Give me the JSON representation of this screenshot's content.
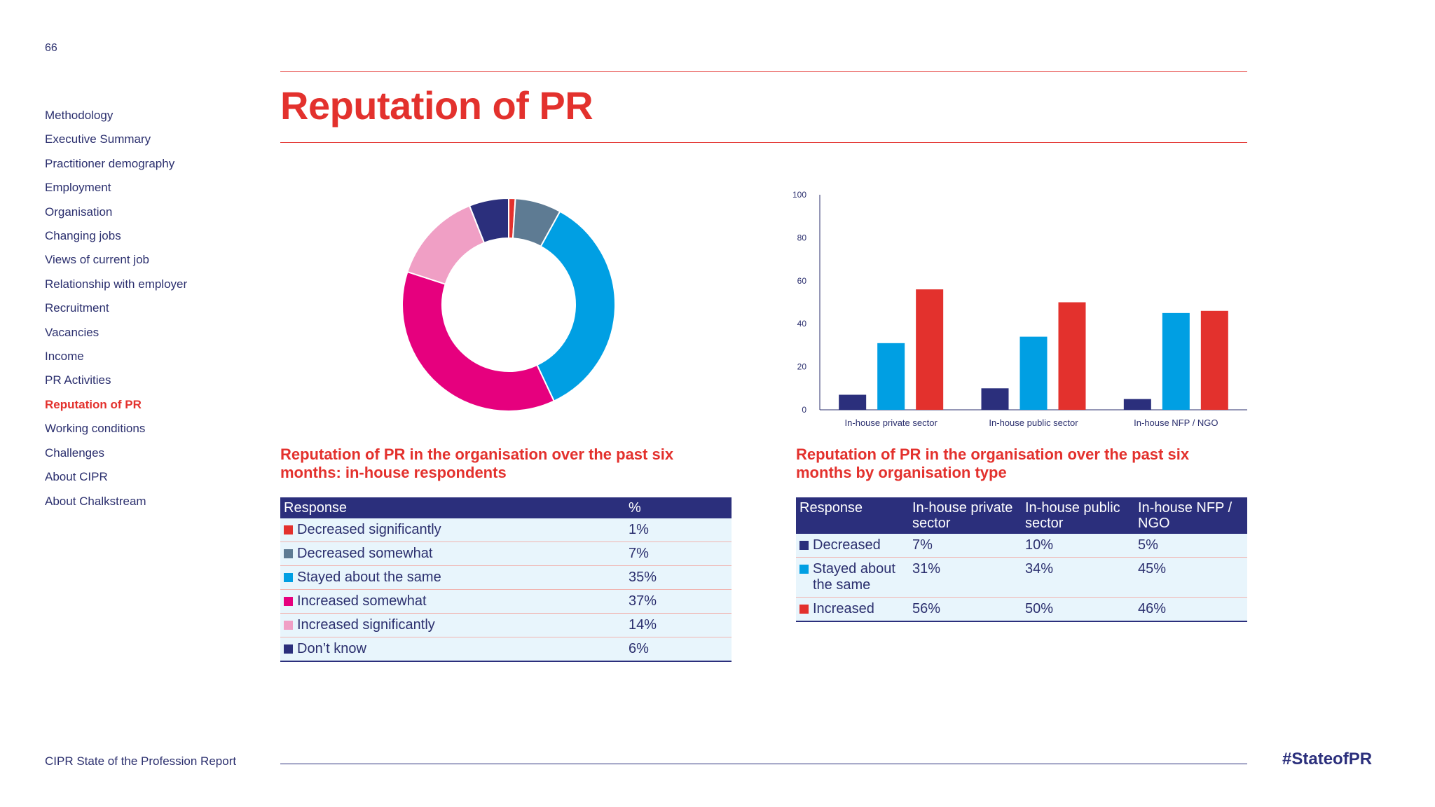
{
  "page_number": "66",
  "title": "Reputation of PR",
  "sidebar": {
    "items": [
      {
        "label": "Methodology",
        "active": false
      },
      {
        "label": "Executive Summary",
        "active": false
      },
      {
        "label": "Practitioner demography",
        "active": false
      },
      {
        "label": "Employment",
        "active": false
      },
      {
        "label": "Organisation",
        "active": false
      },
      {
        "label": "Changing jobs",
        "active": false
      },
      {
        "label": "Views of current job",
        "active": false
      },
      {
        "label": "Relationship with employer",
        "active": false
      },
      {
        "label": "Recruitment",
        "active": false
      },
      {
        "label": "Vacancies",
        "active": false
      },
      {
        "label": "Income",
        "active": false
      },
      {
        "label": "PR Activities",
        "active": false
      },
      {
        "label": "Reputation of PR",
        "active": true
      },
      {
        "label": "Working conditions",
        "active": false
      },
      {
        "label": "Challenges",
        "active": false
      },
      {
        "label": "About CIPR",
        "active": false
      },
      {
        "label": "About Chalkstream",
        "active": false
      }
    ]
  },
  "footer": {
    "left": "CIPR State of the Profession Report",
    "right": "#StateofPR"
  },
  "chart_data": [
    {
      "type": "pie",
      "donut": true,
      "title": "Reputation of PR in the organisation over the past six months: in-house respondents",
      "categories": [
        "Decreased significantly",
        "Decreased somewhat",
        "Stayed about the same",
        "Increased somewhat",
        "Increased significantly",
        "Don't know"
      ],
      "values": [
        1,
        7,
        35,
        37,
        14,
        6
      ],
      "colors": [
        "#e3312d",
        "#5e7b93",
        "#009fe3",
        "#e6007e",
        "#f09fc5",
        "#2b2f7c"
      ],
      "legend": "none",
      "table": {
        "headers": [
          "Response",
          "%"
        ],
        "rows": [
          [
            "Decreased significantly",
            "1%"
          ],
          [
            "Decreased somewhat",
            "7%"
          ],
          [
            "Stayed about the same",
            "35%"
          ],
          [
            "Increased somewhat",
            "37%"
          ],
          [
            "Increased significantly",
            "14%"
          ],
          [
            "Don’t know",
            "6%"
          ]
        ]
      }
    },
    {
      "type": "bar",
      "title": "Reputation of PR in the organisation over the past six months by organisation type",
      "categories": [
        "In-house private sector",
        "In-house public sector",
        "In-house NFP / NGO"
      ],
      "series": [
        {
          "name": "Decreased",
          "values": [
            7,
            10,
            5
          ],
          "color": "#2b2f7c"
        },
        {
          "name": "Stayed about the same",
          "values": [
            31,
            34,
            45
          ],
          "color": "#009fe3"
        },
        {
          "name": "Increased",
          "values": [
            56,
            50,
            46
          ],
          "color": "#e3312d"
        }
      ],
      "ylim": [
        0,
        100
      ],
      "yticks": [
        "0",
        "20",
        "40",
        "60",
        "80",
        "100"
      ],
      "grid": false,
      "legend": "none",
      "table": {
        "headers": [
          "Response",
          "In-house private sector",
          "In-house public sector",
          "In-house NFP / NGO"
        ],
        "rows": [
          [
            "Decreased",
            "7%",
            "10%",
            "5%"
          ],
          [
            "Stayed about the same",
            "31%",
            "34%",
            "45%"
          ],
          [
            "Increased",
            "56%",
            "50%",
            "46%"
          ]
        ]
      }
    }
  ]
}
